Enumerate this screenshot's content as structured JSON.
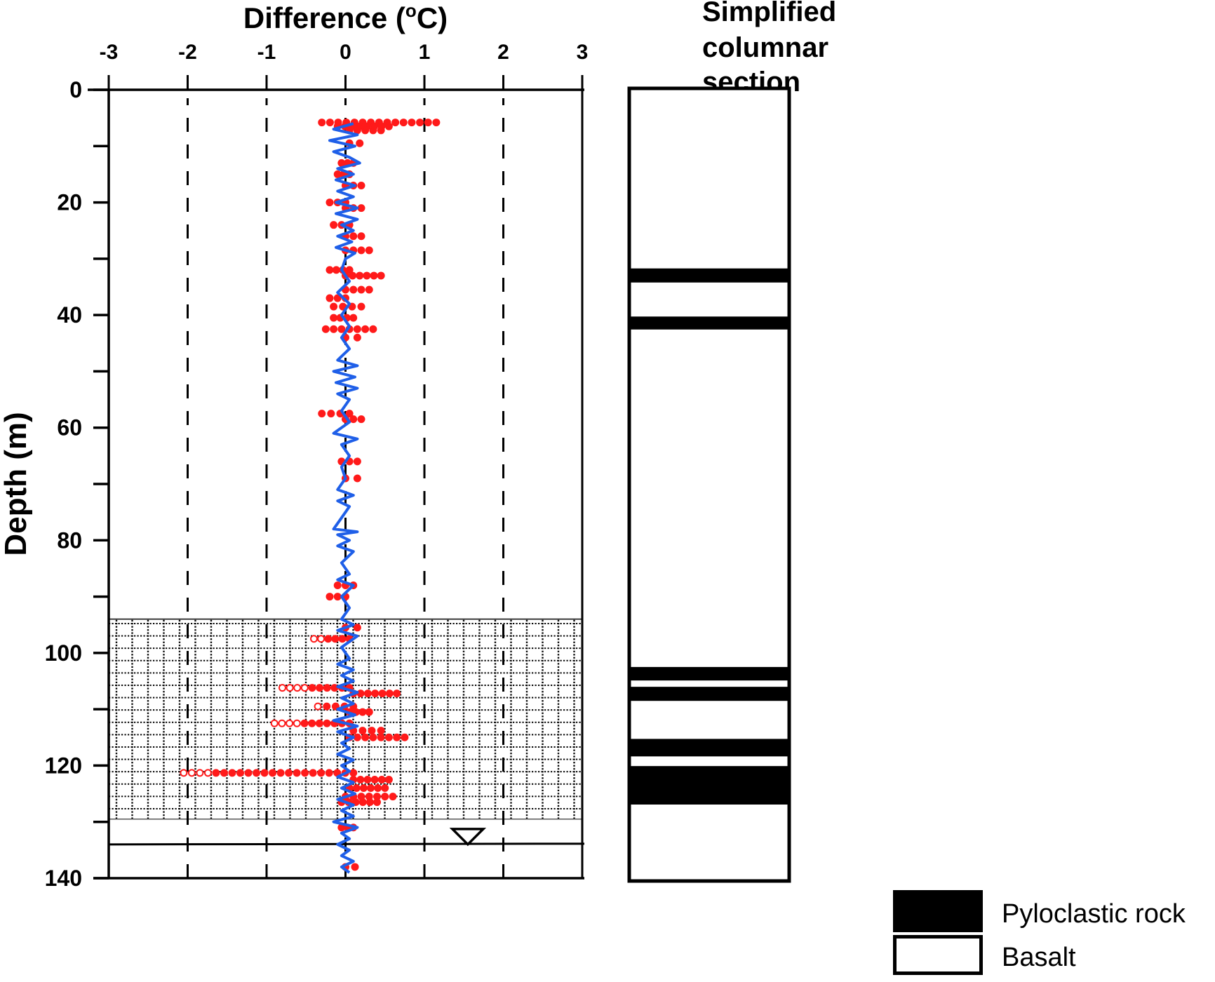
{
  "chart_data": [
    {
      "type": "scatter",
      "title": "Difference (°C)",
      "title_main": "Difference (",
      "title_sup": "o",
      "title_end": "C)",
      "xlabel": "Difference (°C)",
      "ylabel": "Depth (m)",
      "xlim": [
        -3,
        3
      ],
      "ylim": [
        0,
        140
      ],
      "y_inverted": true,
      "x_axis_position": "top",
      "x_ticks": [
        -3,
        -2,
        -1,
        0,
        1,
        2,
        3
      ],
      "x_tick_labels": [
        "-3",
        "-2",
        "-1",
        "0",
        "1",
        "2",
        "3"
      ],
      "y_ticks": [
        0,
        20,
        40,
        60,
        80,
        100,
        120,
        140
      ],
      "y_tick_labels": [
        "0",
        "20",
        "40",
        "60",
        "80",
        "100",
        "120",
        "140"
      ],
      "y_minor_ticks": [
        10,
        30,
        50,
        70,
        90,
        110,
        130
      ],
      "grid": "dashed vertical lines at x ticks",
      "shaded_zone": {
        "depth_from": 94,
        "depth_to": 129.5,
        "pattern": "dotted grid"
      },
      "water_level": {
        "depth": 134,
        "marker": "inverted triangle",
        "marker_x": 1.55
      },
      "colors": {
        "points": "#ff1a1a",
        "line": "#1f5fe8",
        "axes": "#000000"
      },
      "series": [
        {
          "name": "Red dotted profile (horizontal point runs)",
          "kind": "point-runs",
          "runs": [
            {
              "depth": 5.8,
              "from": -0.3,
              "to": 1.15
            },
            {
              "depth": 6.5,
              "from": -0.1,
              "to": 0.55
            },
            {
              "depth": 7.2,
              "from": 0.05,
              "to": 0.45
            },
            {
              "depth": 9.5,
              "from": 0.05,
              "to": 0.18
            },
            {
              "depth": 13,
              "from": -0.05,
              "to": 0.1
            },
            {
              "depth": 15,
              "from": -0.1,
              "to": 0.05
            },
            {
              "depth": 17,
              "from": 0.0,
              "to": 0.2
            },
            {
              "depth": 20,
              "from": -0.2,
              "to": 0.0
            },
            {
              "depth": 21,
              "from": 0.0,
              "to": 0.2
            },
            {
              "depth": 24,
              "from": -0.15,
              "to": 0.05
            },
            {
              "depth": 26,
              "from": 0.0,
              "to": 0.2
            },
            {
              "depth": 28.5,
              "from": 0.0,
              "to": 0.3
            },
            {
              "depth": 32,
              "from": -0.2,
              "to": 0.05
            },
            {
              "depth": 33,
              "from": 0.0,
              "to": 0.45
            },
            {
              "depth": 35.5,
              "from": 0.0,
              "to": 0.3
            },
            {
              "depth": 37,
              "from": -0.2,
              "to": 0.0
            },
            {
              "depth": 38.5,
              "from": -0.15,
              "to": 0.2
            },
            {
              "depth": 40.5,
              "from": -0.15,
              "to": 0.1
            },
            {
              "depth": 42.5,
              "from": -0.25,
              "to": 0.35
            },
            {
              "depth": 44,
              "from": 0.0,
              "to": 0.15
            },
            {
              "depth": 57.5,
              "from": -0.3,
              "to": 0.05
            },
            {
              "depth": 58.5,
              "from": 0.0,
              "to": 0.2
            },
            {
              "depth": 66,
              "from": -0.05,
              "to": 0.15
            },
            {
              "depth": 69,
              "from": 0.0,
              "to": 0.15
            },
            {
              "depth": 88,
              "from": -0.1,
              "to": 0.1
            },
            {
              "depth": 90,
              "from": -0.2,
              "to": 0.0
            },
            {
              "depth": 95.5,
              "from": 0.0,
              "to": 0.15
            },
            {
              "depth": 97.5,
              "from": -0.4,
              "to": 0.05
            },
            {
              "depth": 106.2,
              "from": -0.8,
              "to": 0.05
            },
            {
              "depth": 107.2,
              "from": 0.1,
              "to": 0.65
            },
            {
              "depth": 109.5,
              "from": -0.35,
              "to": 0.1
            },
            {
              "depth": 110.5,
              "from": 0.05,
              "to": 0.3
            },
            {
              "depth": 112.5,
              "from": -0.9,
              "to": 0.05
            },
            {
              "depth": 113.8,
              "from": 0.1,
              "to": 0.45
            },
            {
              "depth": 115,
              "from": 0.05,
              "to": 0.75
            },
            {
              "depth": 121.3,
              "from": -2.05,
              "to": 0.1
            },
            {
              "depth": 122.5,
              "from": 0.1,
              "to": 0.55
            },
            {
              "depth": 124,
              "from": 0.05,
              "to": 0.5
            },
            {
              "depth": 125.5,
              "from": 0.0,
              "to": 0.6
            },
            {
              "depth": 126.5,
              "from": -0.05,
              "to": 0.4
            },
            {
              "depth": 131,
              "from": -0.05,
              "to": 0.1
            },
            {
              "depth": 138,
              "from": 0.0,
              "to": 0.12
            }
          ]
        },
        {
          "name": "Blue line profile",
          "kind": "line",
          "points": [
            [
              0.1,
              6
            ],
            [
              -0.15,
              7
            ],
            [
              0.15,
              8
            ],
            [
              -0.2,
              9
            ],
            [
              0.12,
              10
            ],
            [
              -0.15,
              11
            ],
            [
              0.05,
              12
            ],
            [
              0.18,
              13
            ],
            [
              -0.1,
              14
            ],
            [
              0.1,
              15
            ],
            [
              -0.12,
              16
            ],
            [
              0.12,
              17
            ],
            [
              -0.1,
              18
            ],
            [
              0.1,
              19
            ],
            [
              -0.12,
              20
            ],
            [
              0.15,
              21
            ],
            [
              -0.12,
              22
            ],
            [
              0.15,
              23
            ],
            [
              -0.05,
              24
            ],
            [
              0.1,
              25
            ],
            [
              -0.1,
              26
            ],
            [
              0.08,
              27
            ],
            [
              -0.12,
              28
            ],
            [
              0.12,
              29
            ],
            [
              0.0,
              30
            ],
            [
              -0.05,
              32
            ],
            [
              0.05,
              34
            ],
            [
              -0.1,
              36
            ],
            [
              0.05,
              38
            ],
            [
              -0.05,
              40
            ],
            [
              0.05,
              42
            ],
            [
              -0.05,
              44
            ],
            [
              0.05,
              46
            ],
            [
              -0.1,
              48
            ],
            [
              0.15,
              49
            ],
            [
              -0.15,
              50
            ],
            [
              0.12,
              51
            ],
            [
              -0.12,
              52
            ],
            [
              0.15,
              53
            ],
            [
              -0.1,
              54
            ],
            [
              0.05,
              55
            ],
            [
              -0.05,
              57
            ],
            [
              0.05,
              59
            ],
            [
              -0.15,
              61
            ],
            [
              0.15,
              62
            ],
            [
              -0.05,
              63
            ],
            [
              0.05,
              65
            ],
            [
              -0.05,
              67
            ],
            [
              0.0,
              69
            ],
            [
              -0.1,
              71
            ],
            [
              0.1,
              72
            ],
            [
              -0.1,
              73
            ],
            [
              0.05,
              74
            ],
            [
              -0.05,
              76
            ],
            [
              -0.15,
              78
            ],
            [
              0.15,
              78.5
            ],
            [
              -0.1,
              79
            ],
            [
              0.05,
              80
            ],
            [
              -0.1,
              81
            ],
            [
              0.1,
              82
            ],
            [
              -0.05,
              84
            ],
            [
              0.05,
              86
            ],
            [
              -0.1,
              87
            ],
            [
              0.1,
              88
            ],
            [
              -0.05,
              90
            ],
            [
              0.05,
              92
            ],
            [
              -0.05,
              94
            ],
            [
              0.1,
              95
            ],
            [
              -0.1,
              96
            ],
            [
              0.15,
              97
            ],
            [
              -0.05,
              99
            ],
            [
              0.05,
              101
            ],
            [
              -0.1,
              102
            ],
            [
              0.1,
              103
            ],
            [
              -0.05,
              104
            ],
            [
              0.1,
              105
            ],
            [
              -0.1,
              106
            ],
            [
              0.15,
              107
            ],
            [
              -0.05,
              108
            ],
            [
              0.1,
              109
            ],
            [
              -0.1,
              110
            ],
            [
              0.12,
              111
            ],
            [
              -0.15,
              112
            ],
            [
              0.15,
              113
            ],
            [
              -0.1,
              114
            ],
            [
              0.1,
              115
            ],
            [
              -0.05,
              116
            ],
            [
              0.05,
              117
            ],
            [
              -0.1,
              118
            ],
            [
              0.1,
              119
            ],
            [
              -0.05,
              120
            ],
            [
              0.05,
              121
            ],
            [
              -0.1,
              122
            ],
            [
              0.1,
              123
            ],
            [
              -0.05,
              124
            ],
            [
              0.12,
              125
            ],
            [
              -0.1,
              126
            ],
            [
              0.1,
              127
            ],
            [
              -0.05,
              128
            ],
            [
              0.1,
              129
            ],
            [
              -0.15,
              130
            ],
            [
              0.15,
              131
            ],
            [
              -0.05,
              132
            ],
            [
              0.05,
              133
            ],
            [
              -0.1,
              134
            ],
            [
              0.05,
              135
            ],
            [
              -0.05,
              136
            ],
            [
              0.1,
              137
            ],
            [
              -0.05,
              138
            ],
            [
              0.05,
              139
            ]
          ]
        }
      ]
    },
    {
      "type": "table",
      "title": "Simplified columnar section",
      "title_lines": [
        "Simplified",
        "columnar",
        "section"
      ],
      "depth_range": [
        0,
        140
      ],
      "layers": [
        {
          "rock": "Basalt",
          "from": 0,
          "to": 31.8
        },
        {
          "rock": "Pyloclastic rock",
          "from": 31.8,
          "to": 34.3
        },
        {
          "rock": "Basalt",
          "from": 34.3,
          "to": 40.3
        },
        {
          "rock": "Pyloclastic rock",
          "from": 40.3,
          "to": 42.6
        },
        {
          "rock": "Basalt",
          "from": 42.6,
          "to": 102.2
        },
        {
          "rock": "Pyloclastic rock",
          "from": 102.2,
          "to": 104.6
        },
        {
          "rock": "Basalt",
          "from": 104.6,
          "to": 105.7
        },
        {
          "rock": "Pyloclastic rock",
          "from": 105.7,
          "to": 108.2
        },
        {
          "rock": "Basalt",
          "from": 108.2,
          "to": 114.9
        },
        {
          "rock": "Pyloclastic rock",
          "from": 114.9,
          "to": 118.0
        },
        {
          "rock": "Basalt",
          "from": 118.0,
          "to": 119.7
        },
        {
          "rock": "Pyloclastic rock",
          "from": 119.7,
          "to": 126.5
        },
        {
          "rock": "Basalt",
          "from": 126.5,
          "to": 140
        }
      ],
      "legend": [
        {
          "label": "Pyloclastic rock",
          "fill": "#000000"
        },
        {
          "label": "Basalt",
          "fill": "#ffffff"
        }
      ]
    }
  ]
}
